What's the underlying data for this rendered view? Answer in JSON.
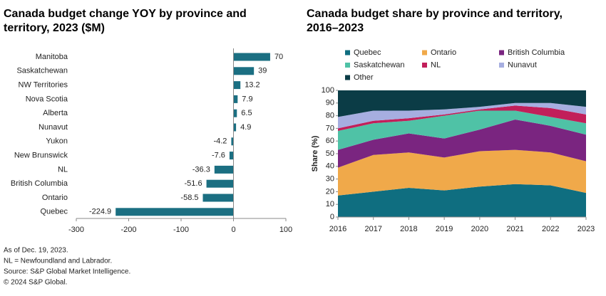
{
  "chart_data": [
    {
      "type": "bar",
      "orientation": "horizontal",
      "title": [
        "Canada budget change YOY by province and",
        "territory, 2023 ($M)"
      ],
      "categories": [
        "Manitoba",
        "Saskatchewan",
        "NW Territories",
        "Nova Scotia",
        "Alberta",
        "Nunavut",
        "Yukon",
        "New Brunswick",
        "NL",
        "British Columbia",
        "Ontario",
        "Quebec"
      ],
      "values": [
        70,
        39,
        13.2,
        7.9,
        6.5,
        4.9,
        -4.2,
        -7.6,
        -36.3,
        -51.6,
        -58.5,
        -224.9
      ],
      "color": "#1b6f82",
      "xlim": [
        -300,
        100
      ],
      "xticks": [
        -300,
        -200,
        -100,
        0,
        100
      ]
    },
    {
      "type": "stacked-area",
      "title": [
        "Canada budget share by province and territory,",
        "2016–2023"
      ],
      "ylabel": "Share (%)",
      "x": [
        2016,
        2017,
        2018,
        2019,
        2020,
        2021,
        2022,
        2023
      ],
      "xlim": [
        2016,
        2023
      ],
      "xticks": [
        2016,
        2017,
        2018,
        2019,
        2020,
        2021,
        2022,
        2023
      ],
      "ylim": [
        0,
        100
      ],
      "yticks": [
        0,
        10,
        20,
        30,
        40,
        50,
        60,
        70,
        80,
        90,
        100
      ],
      "series": [
        {
          "name": "Quebec",
          "color": "#0f6e80",
          "values": [
            17,
            20,
            23,
            21,
            24,
            26,
            25,
            19
          ]
        },
        {
          "name": "Ontario",
          "color": "#f0a94a",
          "values": [
            22,
            29,
            28,
            26,
            28,
            27,
            26,
            25
          ]
        },
        {
          "name": "British Columbia",
          "color": "#7a2580",
          "values": [
            14,
            12,
            15,
            15,
            17,
            24,
            21,
            21
          ]
        },
        {
          "name": "Saskatchewan",
          "color": "#4fc2a6",
          "values": [
            15,
            13,
            10,
            18,
            15,
            7,
            7,
            9
          ]
        },
        {
          "name": "NL",
          "color": "#c21f5a",
          "values": [
            2,
            2,
            2,
            1,
            1,
            4,
            7,
            7
          ]
        },
        {
          "name": "Nunavut",
          "color": "#a6aee0",
          "values": [
            9,
            8,
            6,
            4,
            2,
            2,
            4,
            6
          ]
        },
        {
          "name": "Other",
          "color": "#0b3c46",
          "values": [
            21,
            16,
            16,
            15,
            13,
            10,
            10,
            13
          ]
        }
      ]
    }
  ],
  "notes": [
    "As of Dec. 19, 2023.",
    "NL = Newfoundland and Labrador.",
    "Source: S&P Global Market Intelligence.",
    "© 2024 S&P Global."
  ]
}
